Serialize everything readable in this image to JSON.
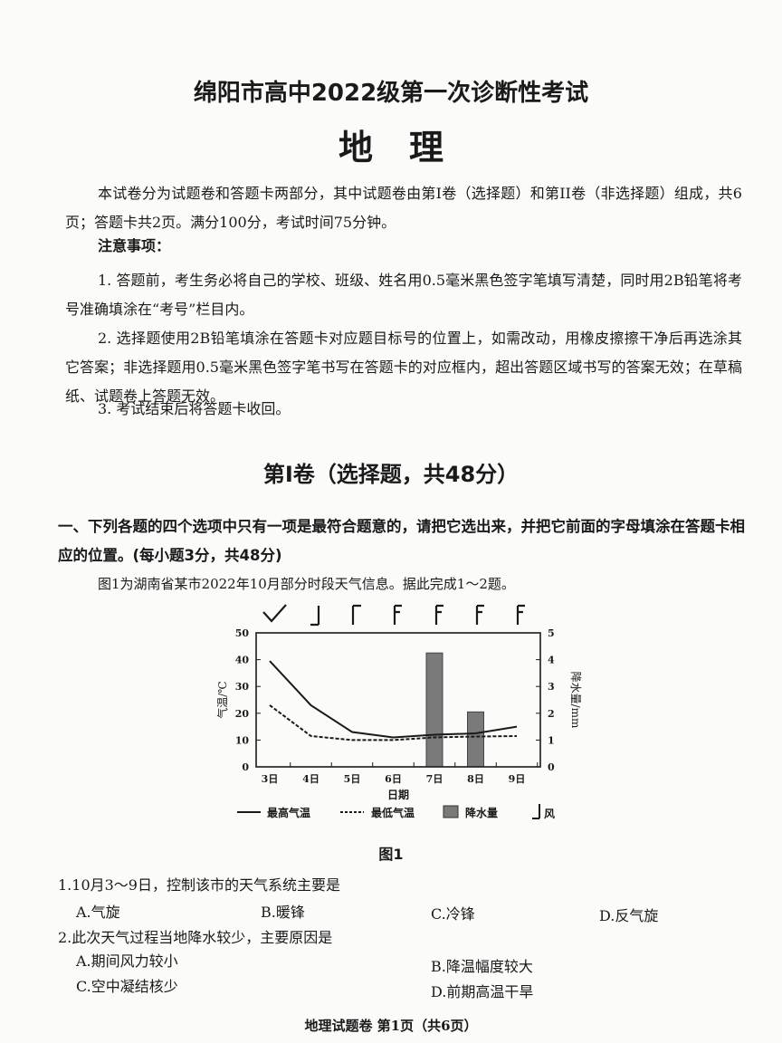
{
  "header": {
    "title": "绵阳市高中2022级第一次诊断性考试",
    "subject": "地理"
  },
  "intro": {
    "paragraph": "本试卷分为试题卷和答题卡两部分，其中试题卷由第I卷（选择题）和第II卷（非选择题）组成，共6页；答题卡共2页。满分100分，考试时间75分钟。",
    "notice_heading": "注意事项：",
    "notices": [
      "1. 答题前，考生务必将自己的学校、班级、姓名用0.5毫米黑色签字笔填写清楚，同时用2B铅笔将考号准确填涂在“考号”栏目内。",
      "2. 选择题使用2B铅笔填涂在答题卡对应题目标号的位置上，如需改动，用橡皮擦擦干净后再选涂其它答案；非选择题用0.5毫米黑色签字笔书写在答题卡的对应框内，超出答题区域书写的答案无效；在草稿纸、试题卷上答题无效。",
      "3. 考试结束后将答题卡收回。"
    ]
  },
  "section": {
    "title": "第Ⅰ卷（选择题，共48分）",
    "instruction": "一、下列各题的四个选项中只有一项是最符合题意的，请把它选出来，并把它前面的字母填涂在答题卡相应的位置。(每小题3分，共48分)",
    "caption": "图1为湖南省某市2022年10月部分时段天气信息。据此完成1～2题。"
  },
  "chart_data": {
    "type": "line",
    "title": "",
    "figure_label": "图1",
    "categories": [
      "3日",
      "4日",
      "5日",
      "6日",
      "7日",
      "8日",
      "9日"
    ],
    "xlabel": "日期",
    "ylabel": "气温/℃",
    "ylabel_right": "降水量/mm",
    "ylim": [
      0,
      50
    ],
    "ylim_right": [
      0,
      5
    ],
    "yticks": [
      "0",
      "10",
      "20",
      "30",
      "40",
      "50"
    ],
    "yticks_right": [
      "0",
      "1",
      "2",
      "3",
      "4",
      "5"
    ],
    "grid": false,
    "legend_position": "bottom",
    "series": [
      {
        "name": "最高气温",
        "type": "line",
        "style": "solid",
        "values": [
          39.5,
          23,
          13,
          11,
          12,
          12.5,
          15
        ]
      },
      {
        "name": "最低气温",
        "type": "line",
        "style": "dashed",
        "values": [
          23,
          11.5,
          10,
          10,
          11,
          11.3,
          11.5
        ]
      },
      {
        "name": "降水量",
        "type": "bar",
        "axis": "right",
        "color": "#7a7a7a",
        "values": [
          0,
          0,
          0,
          0,
          4.25,
          2.05,
          0
        ]
      }
    ],
    "wind_legend": "风",
    "wind_symbols": [
      "calm-check",
      "barb-south",
      "barb-north",
      "barb-north-strong",
      "barb-north-strong",
      "barb-north-strong",
      "barb-north-strong"
    ]
  },
  "questions": [
    {
      "stem": "1.10月3～9日，控制该市的天气系统主要是",
      "options": [
        "A.气旋",
        "B.暖锋",
        "C.冷锋",
        "D.反气旋"
      ]
    },
    {
      "stem": "2.此次天气过程当地降水较少，主要原因是",
      "options": [
        "A.期间风力较小",
        "B.降温幅度较大",
        "C.空中凝结核少",
        "D.前期高温干旱"
      ]
    }
  ],
  "footer": "地理试题卷 第1页（共6页）"
}
